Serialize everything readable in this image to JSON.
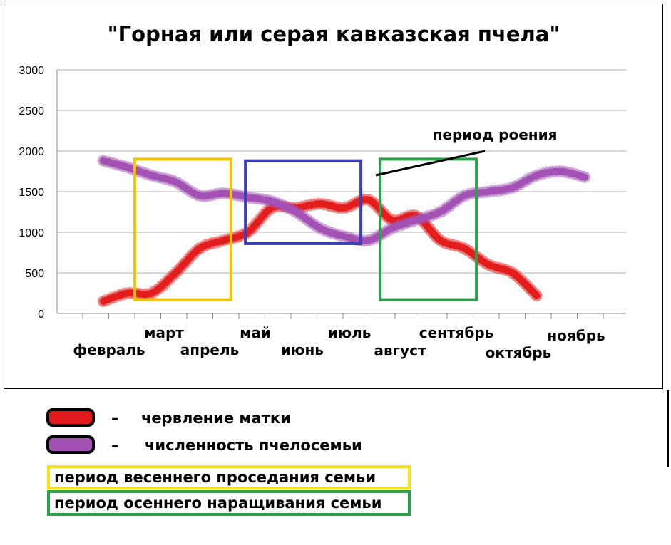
{
  "chart_data": {
    "type": "line",
    "title": "\"Горная или серая кавказская пчела\"",
    "xlabel": "",
    "ylabel": "",
    "ylim": [
      0,
      3000
    ],
    "yticks": [
      0,
      500,
      1000,
      1500,
      2000,
      2500,
      3000
    ],
    "grid": true,
    "categories": [
      "февраль",
      "март",
      "апрель",
      "май",
      "июнь",
      "июль",
      "август",
      "сентябрь",
      "октябрь",
      "ноябрь"
    ],
    "series": [
      {
        "name": "червление матки",
        "color": "#e31a1c",
        "x": [
          0,
          0.5,
          1,
          1.5,
          2,
          2.5,
          3,
          3.5,
          4,
          4.5,
          5,
          5.5,
          6,
          6.5,
          7,
          7.5,
          8,
          8.5,
          9
        ],
        "values": [
          150,
          250,
          250,
          500,
          800,
          900,
          1000,
          1300,
          1300,
          1350,
          1300,
          1400,
          1150,
          1200,
          900,
          800,
          600,
          500,
          220
        ]
      },
      {
        "name": "численность пчелосемьи",
        "color": "#a351b5",
        "x": [
          0,
          0.5,
          1,
          1.5,
          2,
          2.5,
          3,
          3.5,
          4,
          4.5,
          5,
          5.5,
          6,
          6.5,
          7,
          7.5,
          8,
          8.5,
          9,
          9.5,
          10
        ],
        "values": [
          1880,
          1800,
          1700,
          1620,
          1450,
          1480,
          1430,
          1380,
          1250,
          1050,
          950,
          900,
          1050,
          1150,
          1250,
          1450,
          1500,
          1550,
          1700,
          1750,
          1680
        ]
      }
    ],
    "regions": [
      {
        "label": "период весеннего проседания семьи",
        "color": "#f5c400",
        "x": [
          0.65,
          2.65
        ],
        "y": [
          170,
          1900
        ]
      },
      {
        "label": "",
        "color": "#3a3fb5",
        "x": [
          2.95,
          5.35
        ],
        "y": [
          860,
          1880
        ]
      },
      {
        "label": "период осеннего наращивания семьи",
        "color": "#2aa14a",
        "x": [
          5.75,
          7.75
        ],
        "y": [
          170,
          1900
        ]
      }
    ],
    "annotations": [
      {
        "text": "период роения"
      }
    ]
  },
  "legend": {
    "items": [
      {
        "swatch_color": "#e31a1c",
        "dash": "–",
        "label": "червление матки"
      },
      {
        "swatch_color": "#a351b5",
        "dash": "–",
        "label": "численность пчелосемьи"
      }
    ],
    "boxes": [
      {
        "color": "#f5e21a",
        "label": "период весеннего проседания семьи"
      },
      {
        "color": "#2aa14a",
        "label": "период осеннего наращивания семьи"
      }
    ]
  }
}
